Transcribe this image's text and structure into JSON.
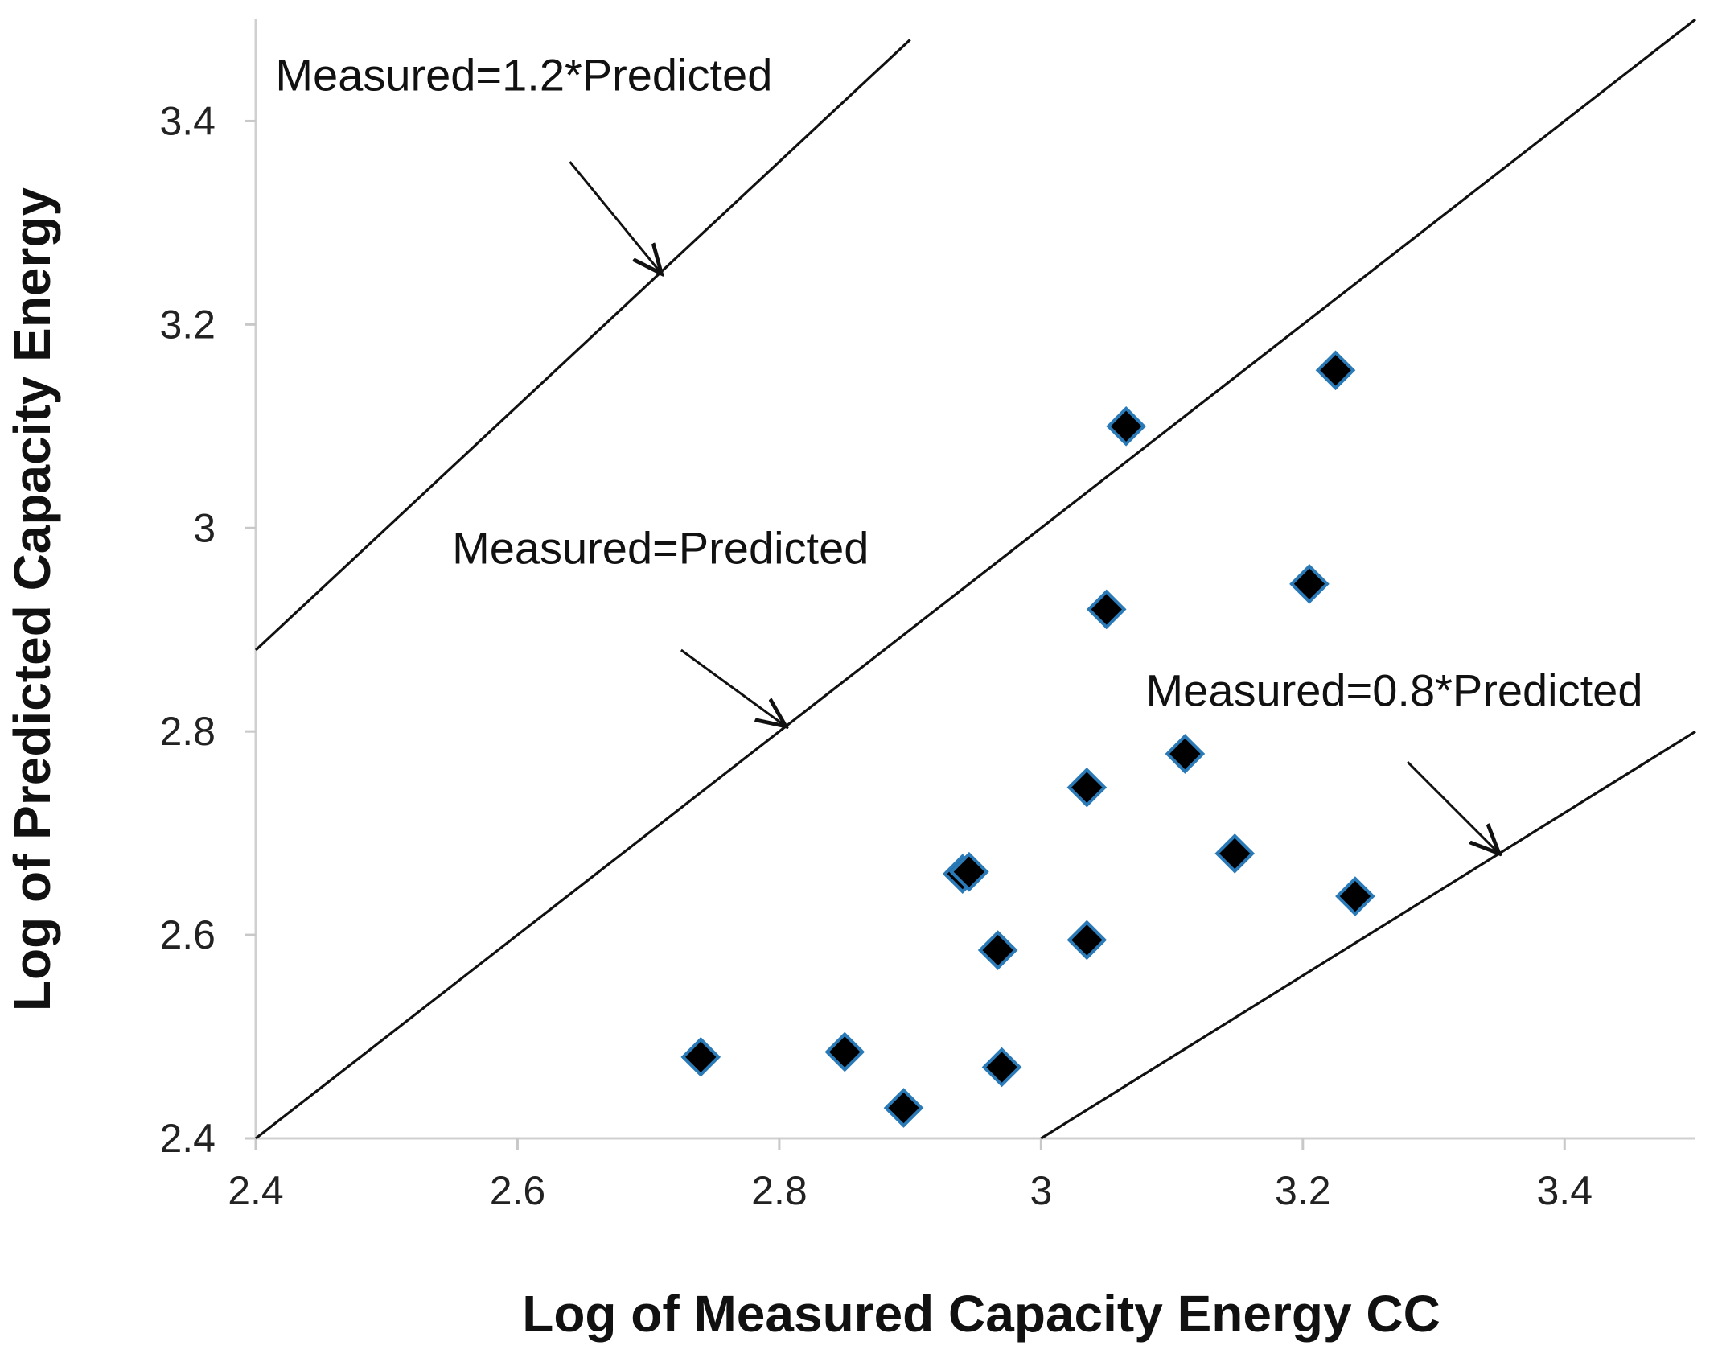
{
  "chart_data": {
    "type": "scatter",
    "title": "",
    "xlabel": "Log of Measured Capacity Energy CC",
    "ylabel": "Log of Predicted Capacity Energy",
    "xlim": [
      2.4,
      3.5
    ],
    "ylim": [
      2.4,
      3.5
    ],
    "x_ticks": [
      2.4,
      2.6,
      2.8,
      3.0,
      3.2,
      3.4
    ],
    "x_tick_labels": [
      "2.4",
      "2.6",
      "2.8",
      "3",
      "3.2",
      "3.4"
    ],
    "y_ticks": [
      2.4,
      2.6,
      2.8,
      3.0,
      3.2,
      3.4
    ],
    "y_tick_labels": [
      "2.4",
      "2.6",
      "2.8",
      "3",
      "3.2",
      "3.4"
    ],
    "grid": false,
    "series": [
      {
        "name": "data",
        "marker": "diamond",
        "color": "#000000",
        "edge_color": "#2a7ab8",
        "points": [
          {
            "x": 2.74,
            "y": 2.48
          },
          {
            "x": 2.85,
            "y": 2.485
          },
          {
            "x": 2.895,
            "y": 2.43
          },
          {
            "x": 2.94,
            "y": 2.66
          },
          {
            "x": 2.945,
            "y": 2.662
          },
          {
            "x": 2.967,
            "y": 2.585
          },
          {
            "x": 2.97,
            "y": 2.47
          },
          {
            "x": 3.035,
            "y": 2.595
          },
          {
            "x": 3.035,
            "y": 2.745
          },
          {
            "x": 3.05,
            "y": 2.92
          },
          {
            "x": 3.065,
            "y": 3.1
          },
          {
            "x": 3.11,
            "y": 2.778
          },
          {
            "x": 3.148,
            "y": 2.68
          },
          {
            "x": 3.205,
            "y": 2.945
          },
          {
            "x": 3.225,
            "y": 3.155
          },
          {
            "x": 3.24,
            "y": 2.638
          }
        ]
      }
    ],
    "reference_lines": [
      {
        "name": "measured-1.2-predicted",
        "label": "Measured=1.2*Predicted",
        "x": [
          2.4,
          2.9
        ],
        "y": [
          2.88,
          3.48
        ],
        "arrow_from": [
          2.64,
          3.36
        ],
        "arrow_to": [
          2.71,
          3.25
        ]
      },
      {
        "name": "measured-equals-predicted",
        "label": "Measured=Predicted",
        "x": [
          2.4,
          3.5
        ],
        "y": [
          2.4,
          3.5
        ],
        "arrow_from": [
          2.725,
          2.88
        ],
        "arrow_to": [
          2.805,
          2.805
        ]
      },
      {
        "name": "measured-0.8-predicted",
        "label": "Measured=0.8*Predicted",
        "x": [
          3.0,
          3.5
        ],
        "y": [
          2.4,
          2.8
        ],
        "arrow_from": [
          3.28,
          2.77
        ],
        "arrow_to": [
          3.35,
          2.68
        ]
      }
    ]
  }
}
